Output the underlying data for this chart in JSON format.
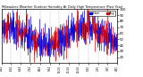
{
  "title": "Milwaukee Weather Outdoor Humidity At Daily High Temperature (Past Year)",
  "n_days": 365,
  "y_min": 10,
  "y_max": 100,
  "background_color": "#ffffff",
  "bar_color_blue": "#0000dd",
  "bar_color_red": "#dd0000",
  "bar_color_black": "#000000",
  "tick_color": "#000000",
  "grid_color": "#888888",
  "border_color": "#000000",
  "y_ticks": [
    20,
    30,
    40,
    50,
    60,
    70,
    80,
    90,
    100
  ],
  "n_grid_lines": 11,
  "bar_linewidth": 0.5
}
